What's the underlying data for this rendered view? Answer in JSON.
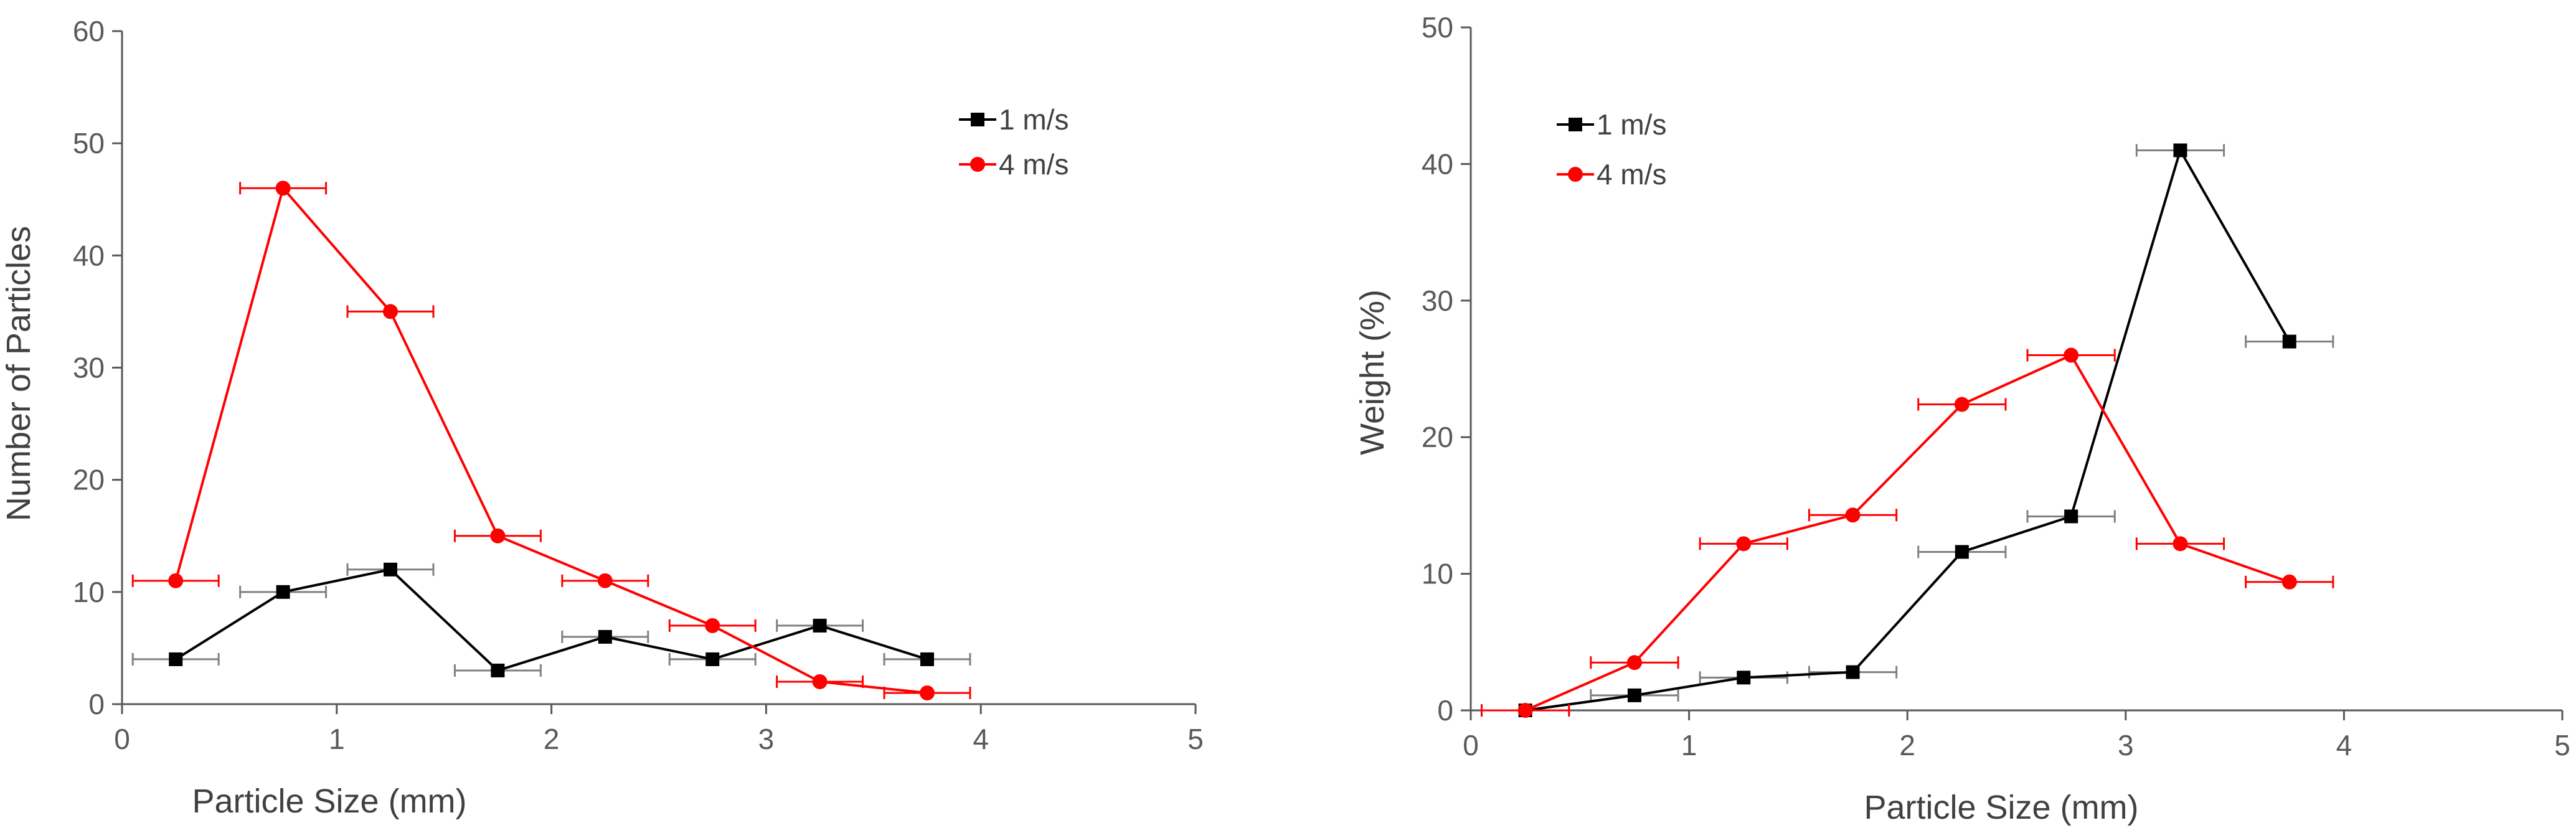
{
  "chart_data": [
    {
      "type": "line",
      "xlabel": "Particle Size (mm)",
      "ylabel": "Number of Particles",
      "xlim": [
        0,
        5
      ],
      "ylim": [
        0,
        60
      ],
      "xticks": [
        "0",
        "1",
        "2",
        "3",
        "4",
        "5"
      ],
      "yticks": [
        "0",
        "10",
        "20",
        "30",
        "40",
        "50",
        "60"
      ],
      "grid": false,
      "legend_position": "top-right",
      "x_error": 0.2,
      "series": [
        {
          "name": "1 m/s",
          "color": "#000000",
          "marker": "square",
          "x": [
            0.25,
            0.75,
            1.25,
            1.75,
            2.25,
            2.75,
            3.25,
            3.75
          ],
          "values": [
            4,
            10,
            12,
            3,
            6,
            4,
            7,
            4
          ]
        },
        {
          "name": "4 m/s",
          "color": "#ff0000",
          "marker": "circle",
          "x": [
            0.25,
            0.75,
            1.25,
            1.75,
            2.25,
            2.75,
            3.25,
            3.75
          ],
          "values": [
            11,
            46,
            35,
            15,
            11,
            7,
            2,
            1
          ]
        }
      ]
    },
    {
      "type": "line",
      "xlabel": "Particle Size (mm)",
      "ylabel": "Weight (%)",
      "xlim": [
        0,
        5
      ],
      "ylim": [
        0,
        50
      ],
      "xticks": [
        "0",
        "1",
        "2",
        "3",
        "4",
        "5"
      ],
      "yticks": [
        "0",
        "10",
        "20",
        "30",
        "40",
        "50"
      ],
      "grid": false,
      "legend_position": "top-left",
      "x_error": 0.2,
      "series": [
        {
          "name": "1 m/s",
          "color": "#000000",
          "marker": "square",
          "x": [
            0.25,
            0.75,
            1.25,
            1.75,
            2.25,
            2.75,
            3.25,
            3.75
          ],
          "values": [
            0,
            1.1,
            2.4,
            2.8,
            11.6,
            14.2,
            41,
            27
          ]
        },
        {
          "name": "4 m/s",
          "color": "#ff0000",
          "marker": "circle",
          "x": [
            0.25,
            0.75,
            1.25,
            1.75,
            2.25,
            2.75,
            3.25,
            3.75
          ],
          "values": [
            0,
            3.5,
            12.2,
            14.3,
            22.4,
            26,
            12.2,
            9.4
          ]
        }
      ]
    }
  ]
}
